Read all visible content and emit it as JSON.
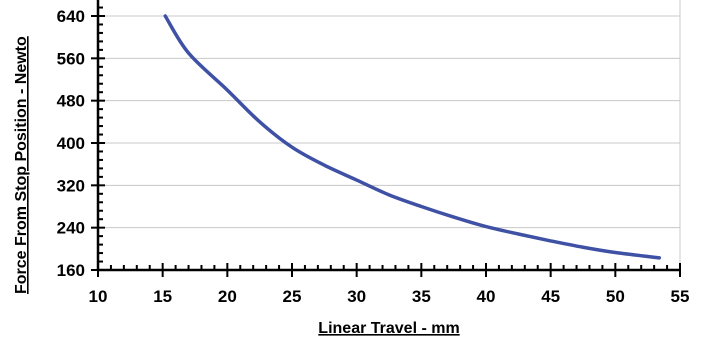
{
  "chart_data": {
    "type": "line",
    "title": "",
    "xlabel": "Linear Travel - mm",
    "ylabel": "Force From Stop Position - Newto",
    "xlim": [
      10,
      55
    ],
    "ylim": [
      160,
      660
    ],
    "x_ticks": [
      "10",
      "15",
      "20",
      "25",
      "30",
      "35",
      "40",
      "45",
      "50",
      "55"
    ],
    "y_ticks": [
      "160",
      "240",
      "320",
      "400",
      "480",
      "560",
      "640"
    ],
    "grid": true,
    "series": [
      {
        "color": "#3f51a5",
        "x": [
          15.2,
          17,
          20,
          22.5,
          25,
          27.5,
          30,
          32.5,
          35,
          37.5,
          40,
          42.5,
          45,
          47.5,
          50,
          53.4
        ],
        "y": [
          640,
          570,
          500,
          440,
          392,
          358,
          330,
          302,
          280,
          260,
          242,
          228,
          215,
          203,
          193,
          183
        ]
      }
    ]
  }
}
